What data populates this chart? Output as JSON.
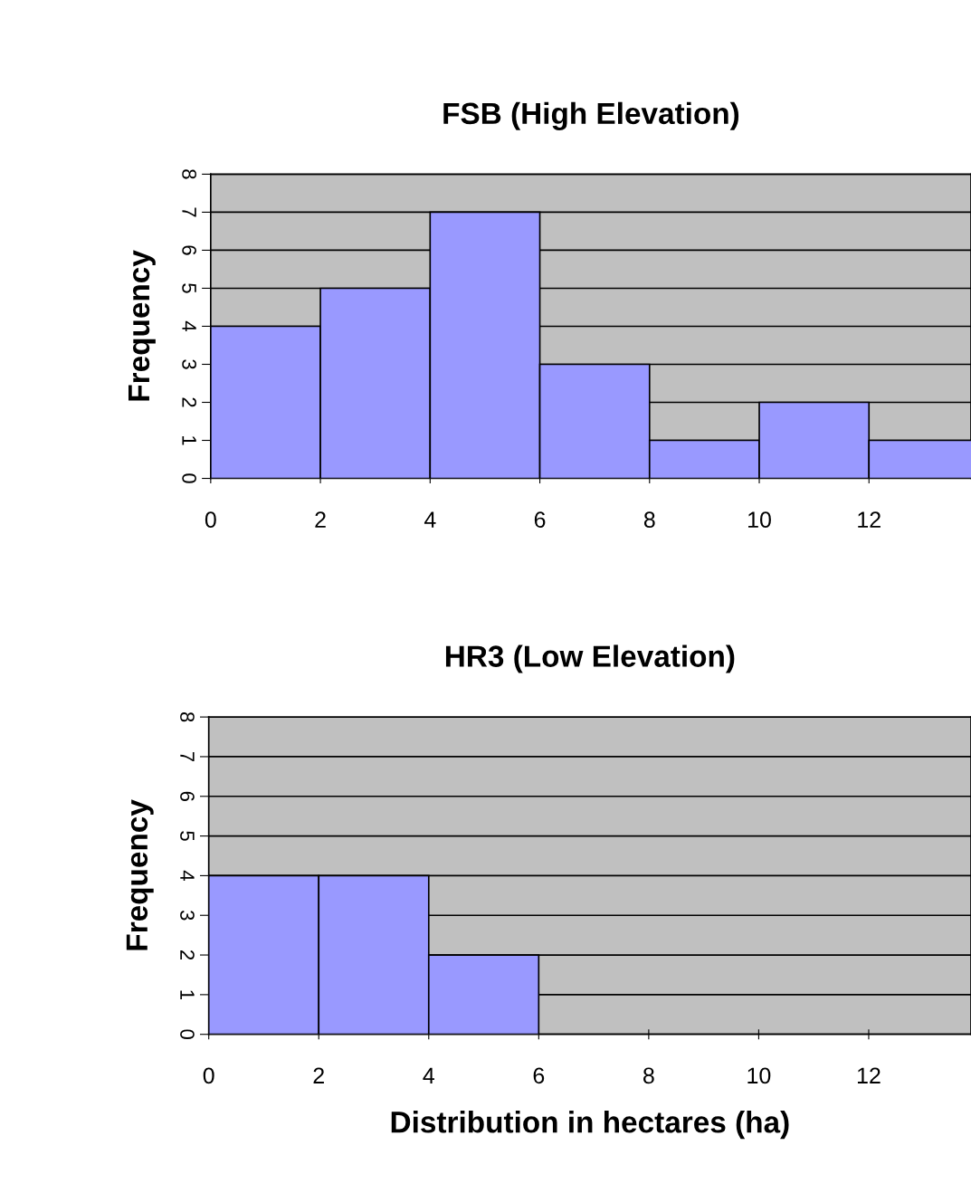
{
  "chart_data": [
    {
      "type": "histogram",
      "title": "FSB (High Elevation)",
      "ylabel": "Frequency",
      "bins": [
        0,
        2,
        4,
        6,
        8,
        10,
        12,
        14
      ],
      "values": [
        4,
        5,
        7,
        3,
        1,
        2,
        1
      ],
      "color": "#9999ff",
      "xlim": [
        0,
        13.86
      ],
      "xticks": [
        0,
        2,
        4,
        6,
        8,
        10,
        12
      ],
      "ylim": [
        0,
        8
      ],
      "yticks": [
        0,
        1,
        2,
        3,
        4,
        5,
        6,
        7,
        8
      ],
      "grid": "y"
    },
    {
      "type": "histogram",
      "title": "HR3 (Low Elevation)",
      "ylabel": "Frequency",
      "xlabel": "Distribution in hectares (ha)",
      "bins": [
        0,
        2,
        4,
        6
      ],
      "values": [
        4,
        4,
        2
      ],
      "color": "#9999ff",
      "xlim": [
        0,
        13.86
      ],
      "xticks": [
        0,
        2,
        4,
        6,
        8,
        10,
        12
      ],
      "ylim": [
        0,
        8
      ],
      "yticks": [
        0,
        1,
        2,
        3,
        4,
        5,
        6,
        7,
        8
      ],
      "grid": "y"
    }
  ]
}
